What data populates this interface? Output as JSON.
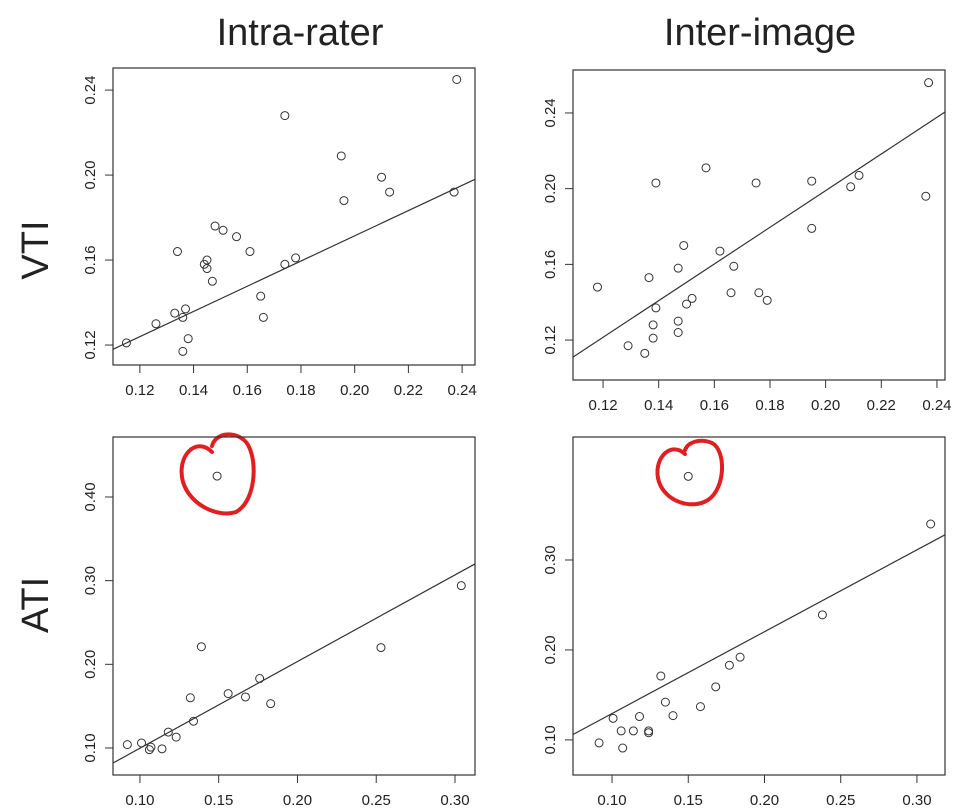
{
  "column_titles": [
    "Intra-rater",
    "Inter-image"
  ],
  "row_labels": [
    "VTI",
    "ATI"
  ],
  "chart_data": [
    {
      "type": "scatter",
      "marker_color": "#333333",
      "line_color": "#333333",
      "x": [
        0.115,
        0.126,
        0.134,
        0.133,
        0.136,
        0.137,
        0.138,
        0.136,
        0.145,
        0.144,
        0.145,
        0.147,
        0.148,
        0.151,
        0.156,
        0.161,
        0.165,
        0.166,
        0.174,
        0.178,
        0.174,
        0.195,
        0.196,
        0.21,
        0.213,
        0.237,
        0.238
      ],
      "y": [
        0.121,
        0.13,
        0.164,
        0.135,
        0.133,
        0.137,
        0.123,
        0.117,
        0.16,
        0.158,
        0.156,
        0.15,
        0.176,
        0.174,
        0.171,
        0.164,
        0.143,
        0.133,
        0.158,
        0.161,
        0.228,
        0.209,
        0.188,
        0.199,
        0.192,
        0.192,
        0.245
      ],
      "fit_line": {
        "x": [
          0.11,
          0.2448
        ],
        "y": [
          0.118,
          0.198
        ]
      },
      "xlim": [
        0.11,
        0.2448
      ],
      "ylim": [
        0.1106,
        0.2504
      ],
      "xticks": [
        0.12,
        0.14,
        0.16,
        0.18,
        {
          "value": 0.2,
          "label": "0.20"
        },
        0.22,
        0.24
      ],
      "yticks": [
        0.12,
        0.16,
        {
          "value": 0.2,
          "label": "0.20"
        },
        0.24
      ]
    },
    {
      "type": "scatter",
      "marker_color": "#333333",
      "line_color": "#333333",
      "x": [
        0.118,
        0.129,
        0.135,
        0.1365,
        0.138,
        0.138,
        0.139,
        0.139,
        0.147,
        0.147,
        0.147,
        0.149,
        0.15,
        0.152,
        0.157,
        0.162,
        0.166,
        0.167,
        0.176,
        0.179,
        0.175,
        0.195,
        0.195,
        0.209,
        0.212,
        0.236,
        0.237
      ],
      "y": [
        0.148,
        0.117,
        0.113,
        0.153,
        0.128,
        0.121,
        0.137,
        0.203,
        0.158,
        0.13,
        0.124,
        0.17,
        0.139,
        0.142,
        0.211,
        0.167,
        0.145,
        0.159,
        0.145,
        0.141,
        0.203,
        0.179,
        0.204,
        0.201,
        0.207,
        0.196,
        0.256
      ],
      "fit_line": {
        "x": [
          0.1092,
          0.2429
        ],
        "y": [
          0.111,
          0.2405
        ]
      },
      "xlim": [
        0.1092,
        0.2429
      ],
      "ylim": [
        0.0989,
        0.2627
      ],
      "xticks": [
        0.12,
        0.14,
        0.16,
        0.18,
        {
          "value": 0.2,
          "label": "0.20"
        },
        0.22,
        0.24
      ],
      "yticks": [
        0.12,
        0.16,
        {
          "value": 0.2,
          "label": "0.20"
        },
        0.24
      ]
    },
    {
      "type": "scatter",
      "marker_color": "#333333",
      "line_color": "#333333",
      "x": [
        0.092,
        0.101,
        0.106,
        0.107,
        0.114,
        0.118,
        0.123,
        0.132,
        0.134,
        0.139,
        0.156,
        0.167,
        0.176,
        0.183,
        0.149,
        0.253,
        0.304
      ],
      "y": [
        0.104,
        0.106,
        0.098,
        0.101,
        0.099,
        0.119,
        0.113,
        0.16,
        0.132,
        0.221,
        0.165,
        0.161,
        0.183,
        0.153,
        0.425,
        0.22,
        0.294
      ],
      "fit_line": {
        "x": [
          0.0829,
          0.3127
        ],
        "y": [
          0.082,
          0.32
        ]
      },
      "xlim": [
        0.0829,
        0.3127
      ],
      "ylim": [
        0.0677,
        0.4717
      ],
      "xticks": [
        {
          "value": 0.1,
          "label": "0.10"
        },
        0.15,
        {
          "value": 0.2,
          "label": "0.20"
        },
        0.25,
        {
          "value": 0.3,
          "label": "0.30"
        }
      ],
      "yticks": [
        {
          "value": 0.1,
          "label": "0.10"
        },
        {
          "value": 0.2,
          "label": "0.20"
        },
        {
          "value": 0.3,
          "label": "0.30"
        },
        {
          "value": 0.4,
          "label": "0.40"
        }
      ]
    },
    {
      "type": "scatter",
      "marker_color": "#333333",
      "line_color": "#333333",
      "x": [
        0.0915,
        0.1007,
        0.106,
        0.107,
        0.114,
        0.118,
        0.124,
        0.124,
        0.132,
        0.135,
        0.14,
        0.158,
        0.168,
        0.177,
        0.184,
        0.15,
        0.238,
        0.309
      ],
      "y": [
        0.0967,
        0.124,
        0.11,
        0.091,
        0.11,
        0.126,
        0.11,
        0.108,
        0.171,
        0.142,
        0.127,
        0.137,
        0.159,
        0.183,
        0.192,
        0.393,
        0.239,
        0.34
      ],
      "fit_line": {
        "x": [
          0.0744,
          0.3184
        ],
        "y": [
          0.106,
          0.328
        ]
      },
      "xlim": [
        0.0744,
        0.3184
      ],
      "ylim": [
        0.061,
        0.4367
      ],
      "xticks": [
        {
          "value": 0.1,
          "label": "0.10"
        },
        0.15,
        {
          "value": 0.2,
          "label": "0.20"
        },
        0.25,
        {
          "value": 0.3,
          "label": "0.30"
        }
      ],
      "yticks": [
        {
          "value": 0.1,
          "label": "0.10"
        },
        {
          "value": 0.2,
          "label": "0.20"
        },
        {
          "value": 0.3,
          "label": "0.30"
        }
      ]
    }
  ]
}
